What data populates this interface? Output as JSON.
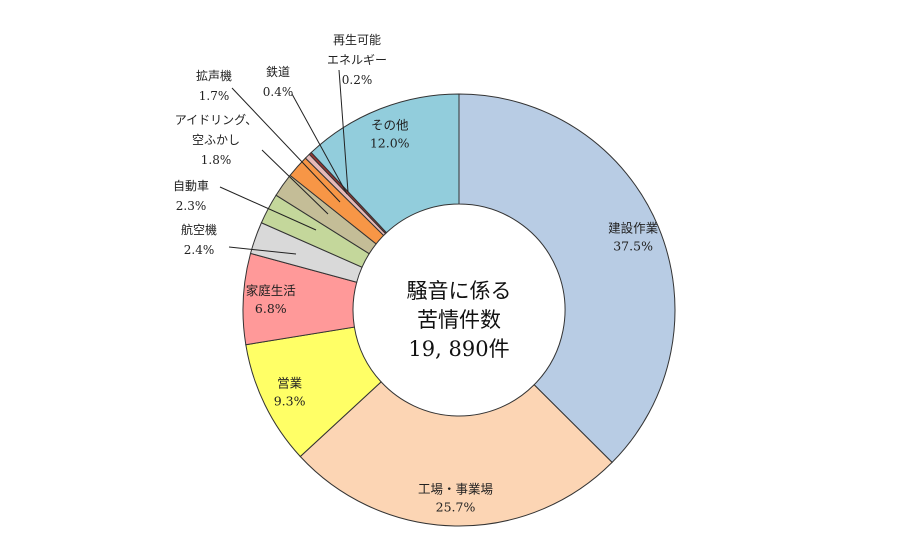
{
  "chart_data": {
    "type": "pie",
    "style": "donut",
    "center_text": [
      "騒音に係る",
      "苦情件数",
      "19, 890件"
    ],
    "slices": [
      {
        "name": "建設作業",
        "value": 37.5,
        "label": "37.5%",
        "color": "#b8cce4"
      },
      {
        "name": "工場・事業場",
        "value": 25.7,
        "label": "25.7%",
        "color": "#fcd5b4"
      },
      {
        "name": "営業",
        "value": 9.3,
        "label": "9.3%",
        "color": "#ffff66"
      },
      {
        "name": "家庭生活",
        "value": 6.8,
        "label": "6.8%",
        "color": "#ff9999"
      },
      {
        "name": "航空機",
        "value": 2.4,
        "label": "2.4%",
        "color": "#d9d9d9"
      },
      {
        "name": "自動車",
        "value": 2.3,
        "label": "2.3%",
        "color": "#c4d79b"
      },
      {
        "name": "アイドリング、空ふかし",
        "name_lines": [
          "アイドリング、",
          "空ふかし"
        ],
        "value": 1.8,
        "label": "1.8%",
        "color": "#c4bd97"
      },
      {
        "name": "拡声機",
        "value": 1.7,
        "label": "1.7%",
        "color": "#f79646"
      },
      {
        "name": "鉄道",
        "value": 0.4,
        "label": "0.4%",
        "color": "#e6b9b8"
      },
      {
        "name": "再生可能エネルギー",
        "name_lines": [
          "再生可能",
          "エネルギー"
        ],
        "value": 0.2,
        "label": "0.2%",
        "color": "#963634"
      },
      {
        "name": "その他",
        "value": 12.0,
        "label": "12.0%",
        "color": "#92cddc"
      }
    ]
  }
}
